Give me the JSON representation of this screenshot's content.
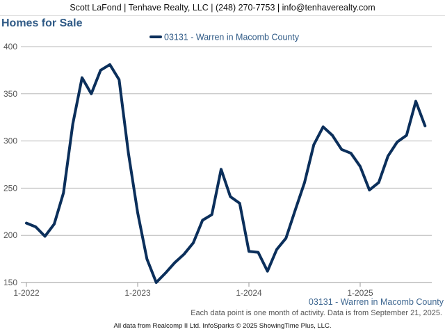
{
  "header": {
    "contact": "Scott LaFond | Tenhave Realty, LLC | (248) 270-7753 | info@tenhaverealty.com"
  },
  "chart_data": {
    "type": "line",
    "title": "Homes for Sale",
    "xlabel": "",
    "ylabel": "",
    "ylim": [
      150,
      400
    ],
    "yticks": [
      150,
      200,
      250,
      300,
      350,
      400
    ],
    "xtick_labels": [
      "1-2022",
      "1-2023",
      "1-2024",
      "1-2025"
    ],
    "x": [
      "1-2022",
      "2-2022",
      "3-2022",
      "4-2022",
      "5-2022",
      "6-2022",
      "7-2022",
      "8-2022",
      "9-2022",
      "10-2022",
      "11-2022",
      "12-2022",
      "1-2023",
      "2-2023",
      "3-2023",
      "4-2023",
      "5-2023",
      "6-2023",
      "7-2023",
      "8-2023",
      "9-2023",
      "10-2023",
      "11-2023",
      "12-2023",
      "1-2024",
      "2-2024",
      "3-2024",
      "4-2024",
      "5-2024",
      "6-2024",
      "7-2024",
      "8-2024",
      "9-2024",
      "10-2024",
      "11-2024",
      "12-2024",
      "1-2025",
      "2-2025",
      "3-2025",
      "4-2025",
      "5-2025",
      "6-2025",
      "7-2025",
      "8-2025"
    ],
    "series": [
      {
        "name": "03131 - Warren in Macomb County",
        "color": "#0b2f5b",
        "values": [
          213,
          209,
          199,
          212,
          245,
          318,
          367,
          350,
          375,
          381,
          365,
          287,
          224,
          175,
          150,
          160,
          171,
          180,
          192,
          216,
          222,
          270,
          241,
          234,
          183,
          182,
          162,
          185,
          197,
          227,
          256,
          296,
          315,
          306,
          291,
          287,
          273,
          248,
          256,
          284,
          299,
          306,
          342,
          316
        ]
      }
    ],
    "grid": true,
    "legend": "top-center"
  },
  "footer": {
    "series_label": "03131 - Warren in Macomb County",
    "note": "Each data point is one month of activity. Data is from September 21, 2025.",
    "credit": "All data from Realcomp II Ltd. InfoSparks © 2025 ShowingTime Plus, LLC."
  }
}
